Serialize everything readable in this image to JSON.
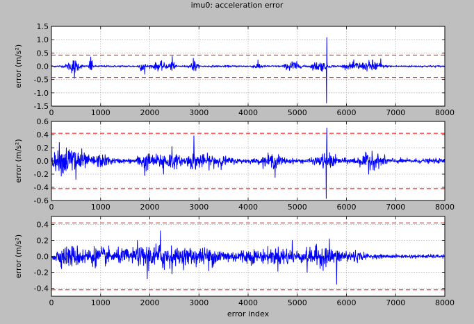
{
  "window": {
    "background": "#bfbfbf"
  },
  "chart_data": {
    "type": "line",
    "title": "imu0: acceleration error",
    "xlabel": "error index",
    "colors": {
      "signal": "#0000ff",
      "threshold": "#ff0000",
      "grid": "#b0b0b0",
      "axes_bg": "#ffffff"
    },
    "panels": [
      {
        "ylabel": "error (m/s²)",
        "xlim": [
          0,
          8000
        ],
        "ylim": [
          -1.5,
          1.5
        ],
        "yticks": [
          "-1.5",
          "-1.0",
          "-0.5",
          "0.0",
          "0.5",
          "1.0",
          "1.5"
        ],
        "ytick_values": [
          -1.5,
          -1.0,
          -0.5,
          0.0,
          0.5,
          1.0,
          1.5
        ],
        "xticks": [
          "0",
          "1000",
          "2000",
          "3000",
          "4000",
          "5000",
          "6000",
          "7000",
          "8000"
        ],
        "threshold": 0.42,
        "base_amplitude": 0.03,
        "bursts": [
          {
            "center": 450,
            "width": 120,
            "amp": 0.22
          },
          {
            "center": 800,
            "width": 30,
            "amp": 0.3
          },
          {
            "center": 1850,
            "width": 60,
            "amp": 0.15
          },
          {
            "center": 2200,
            "width": 150,
            "amp": 0.12
          },
          {
            "center": 2450,
            "width": 40,
            "amp": 0.28
          },
          {
            "center": 2900,
            "width": 60,
            "amp": 0.18
          },
          {
            "center": 4200,
            "width": 80,
            "amp": 0.1
          },
          {
            "center": 4900,
            "width": 120,
            "amp": 0.18
          },
          {
            "center": 5450,
            "width": 150,
            "amp": 0.15
          },
          {
            "center": 6200,
            "width": 200,
            "amp": 0.12
          },
          {
            "center": 6550,
            "width": 150,
            "amp": 0.18
          }
        ],
        "spikes": [
          {
            "x": 5600,
            "y": 1.08
          },
          {
            "x": 5595,
            "y": -1.38
          },
          {
            "x": 470,
            "y": -0.45
          },
          {
            "x": 800,
            "y": 0.35
          },
          {
            "x": 2460,
            "y": 0.38
          },
          {
            "x": 2885,
            "y": 0.3
          },
          {
            "x": 1900,
            "y": -0.3
          },
          {
            "x": 6700,
            "y": 0.28
          }
        ]
      },
      {
        "ylabel": "error (m/s²)",
        "xlim": [
          0,
          8000
        ],
        "ylim": [
          -0.6,
          0.6
        ],
        "yticks": [
          "-0.6",
          "-0.4",
          "-0.2",
          "0.0",
          "0.2",
          "0.4",
          "0.6"
        ],
        "ytick_values": [
          -0.6,
          -0.4,
          -0.2,
          0.0,
          0.2,
          0.4,
          0.6
        ],
        "xticks": [
          "0",
          "1000",
          "2000",
          "3000",
          "4000",
          "5000",
          "6000",
          "7000",
          "8000"
        ],
        "threshold": 0.42,
        "base_amplitude": 0.03,
        "bursts": [
          {
            "center": 250,
            "width": 250,
            "amp": 0.12
          },
          {
            "center": 500,
            "width": 200,
            "amp": 0.14
          },
          {
            "center": 1000,
            "width": 200,
            "amp": 0.06
          },
          {
            "center": 1900,
            "width": 150,
            "amp": 0.09
          },
          {
            "center": 2350,
            "width": 250,
            "amp": 0.1
          },
          {
            "center": 2900,
            "width": 150,
            "amp": 0.08
          },
          {
            "center": 3300,
            "width": 300,
            "amp": 0.06
          },
          {
            "center": 4500,
            "width": 200,
            "amp": 0.07
          },
          {
            "center": 5600,
            "width": 200,
            "amp": 0.08
          },
          {
            "center": 6500,
            "width": 300,
            "amp": 0.07
          }
        ],
        "spikes": [
          {
            "x": 5600,
            "y": 0.5
          },
          {
            "x": 5590,
            "y": -0.57
          },
          {
            "x": 2900,
            "y": 0.38
          },
          {
            "x": 160,
            "y": 0.28
          },
          {
            "x": 500,
            "y": -0.28
          },
          {
            "x": 1900,
            "y": -0.22
          },
          {
            "x": 2280,
            "y": -0.2
          },
          {
            "x": 2450,
            "y": 0.22
          },
          {
            "x": 4550,
            "y": -0.25
          },
          {
            "x": 6450,
            "y": -0.2
          },
          {
            "x": 6520,
            "y": 0.15
          }
        ]
      },
      {
        "ylabel": "error (m/s²)",
        "xlim": [
          0,
          8000
        ],
        "ylim": [
          -0.5,
          0.5
        ],
        "yticks": [
          "-0.4",
          "-0.2",
          "0.0",
          "0.2",
          "0.4"
        ],
        "ytick_values": [
          -0.4,
          -0.2,
          0.0,
          0.2,
          0.4
        ],
        "xticks": [
          "0",
          "1000",
          "2000",
          "3000",
          "4000",
          "5000",
          "6000",
          "7000",
          "8000"
        ],
        "threshold": 0.42,
        "base_amplitude": 0.02,
        "bursts": [
          {
            "center": 400,
            "width": 350,
            "amp": 0.1
          },
          {
            "center": 1000,
            "width": 300,
            "amp": 0.08
          },
          {
            "center": 1500,
            "width": 200,
            "amp": 0.06
          },
          {
            "center": 1950,
            "width": 250,
            "amp": 0.1
          },
          {
            "center": 2300,
            "width": 200,
            "amp": 0.12
          },
          {
            "center": 2800,
            "width": 300,
            "amp": 0.08
          },
          {
            "center": 3300,
            "width": 300,
            "amp": 0.07
          },
          {
            "center": 4000,
            "width": 400,
            "amp": 0.06
          },
          {
            "center": 4700,
            "width": 350,
            "amp": 0.08
          },
          {
            "center": 5500,
            "width": 350,
            "amp": 0.1
          },
          {
            "center": 6100,
            "width": 250,
            "amp": 0.05
          }
        ],
        "spikes": [
          {
            "x": 2220,
            "y": 0.32
          },
          {
            "x": 5800,
            "y": -0.35
          },
          {
            "x": 1950,
            "y": -0.28
          },
          {
            "x": 1750,
            "y": 0.2
          },
          {
            "x": 2450,
            "y": -0.22
          },
          {
            "x": 5650,
            "y": 0.22
          },
          {
            "x": 4900,
            "y": 0.2
          },
          {
            "x": 3200,
            "y": -0.18
          },
          {
            "x": 5200,
            "y": -0.2
          }
        ]
      }
    ]
  }
}
